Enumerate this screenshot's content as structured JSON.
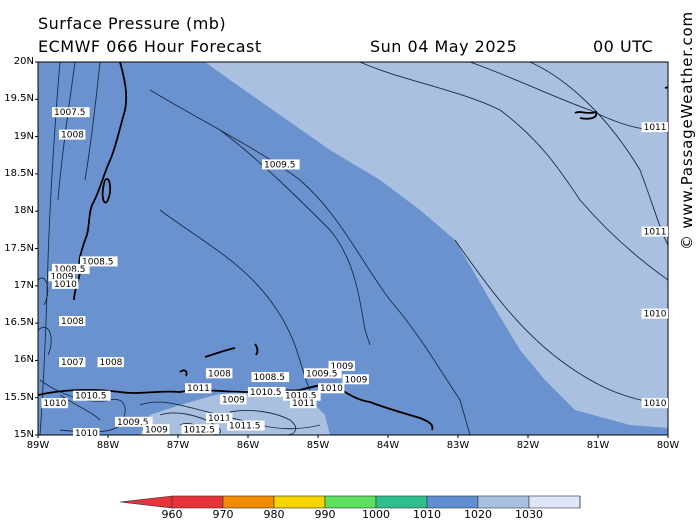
{
  "header": {
    "title": "Surface Pressure (mb)",
    "model_line": "ECMWF 066 Hour Forecast",
    "date": "Sun 04 May 2025",
    "time": "00 UTC"
  },
  "watermark": "© www.PassageWeather.com",
  "map": {
    "lat_range": [
      15,
      20
    ],
    "lon_range": [
      -89,
      -80
    ],
    "lat_ticks": [
      "20N",
      "19.5N",
      "19N",
      "18.5N",
      "18N",
      "17.5N",
      "17N",
      "16.5N",
      "16N",
      "15.5N",
      "15N"
    ],
    "lon_ticks": [
      "89W",
      "88W",
      "87W",
      "86W",
      "85W",
      "84W",
      "83W",
      "82W",
      "81W",
      "80W"
    ],
    "contour_labels": [
      {
        "text": "1009.5",
        "lat": 18.6,
        "lon": -85.8
      },
      {
        "text": "1011",
        "lat": 19.1,
        "lon": -80.15
      },
      {
        "text": "1011",
        "lat": 17.7,
        "lon": -80.15
      },
      {
        "text": "1010",
        "lat": 16.6,
        "lon": -80.15
      },
      {
        "text": "1010",
        "lat": 15.4,
        "lon": -80.15
      },
      {
        "text": "1008",
        "lat": 19.0,
        "lon": -88.7
      },
      {
        "text": "1007.5",
        "lat": 19.3,
        "lon": -88.8
      },
      {
        "text": "1008.5",
        "lat": 17.3,
        "lon": -88.4
      },
      {
        "text": "1008.5",
        "lat": 17.2,
        "lon": -88.8
      },
      {
        "text": "1009",
        "lat": 17.1,
        "lon": -88.85
      },
      {
        "text": "1010",
        "lat": 17.0,
        "lon": -88.8
      },
      {
        "text": "1008",
        "lat": 16.5,
        "lon": -88.7
      },
      {
        "text": "1007",
        "lat": 15.95,
        "lon": -88.7
      },
      {
        "text": "1008",
        "lat": 15.95,
        "lon": -88.15
      },
      {
        "text": "1010.5",
        "lat": 15.5,
        "lon": -88.5
      },
      {
        "text": "1010",
        "lat": 15.4,
        "lon": -88.95
      },
      {
        "text": "1008",
        "lat": 15.8,
        "lon": -86.6
      },
      {
        "text": "1008.5",
        "lat": 15.75,
        "lon": -85.95
      },
      {
        "text": "1009",
        "lat": 15.9,
        "lon": -84.85
      },
      {
        "text": "1009.5",
        "lat": 15.8,
        "lon": -85.2
      },
      {
        "text": "1009",
        "lat": 15.72,
        "lon": -84.65
      },
      {
        "text": "1010",
        "lat": 15.6,
        "lon": -85.0
      },
      {
        "text": "1011",
        "lat": 15.6,
        "lon": -86.9
      },
      {
        "text": "1010.5",
        "lat": 15.55,
        "lon": -86.0
      },
      {
        "text": "1010.5",
        "lat": 15.5,
        "lon": -85.5
      },
      {
        "text": "1011",
        "lat": 15.4,
        "lon": -85.4
      },
      {
        "text": "1009",
        "lat": 15.45,
        "lon": -86.4
      },
      {
        "text": "1011",
        "lat": 15.2,
        "lon": -86.6
      },
      {
        "text": "1011.5",
        "lat": 15.1,
        "lon": -86.3
      },
      {
        "text": "1012.5",
        "lat": 15.05,
        "lon": -86.95
      },
      {
        "text": "1009.5",
        "lat": 15.15,
        "lon": -87.9
      },
      {
        "text": "1009",
        "lat": 15.05,
        "lon": -87.5
      },
      {
        "text": "1010",
        "lat": 15.0,
        "lon": -88.5
      }
    ]
  },
  "colorbar": {
    "ticks": [
      "960",
      "970",
      "980",
      "990",
      "1000",
      "1010",
      "1020",
      "1030"
    ],
    "colors": [
      "#e8333a",
      "#f08c00",
      "#f5d400",
      "#5ee05e",
      "#2fbf8c",
      "#5f8fd0",
      "#a9c0e0",
      "#dde7f6"
    ]
  }
}
